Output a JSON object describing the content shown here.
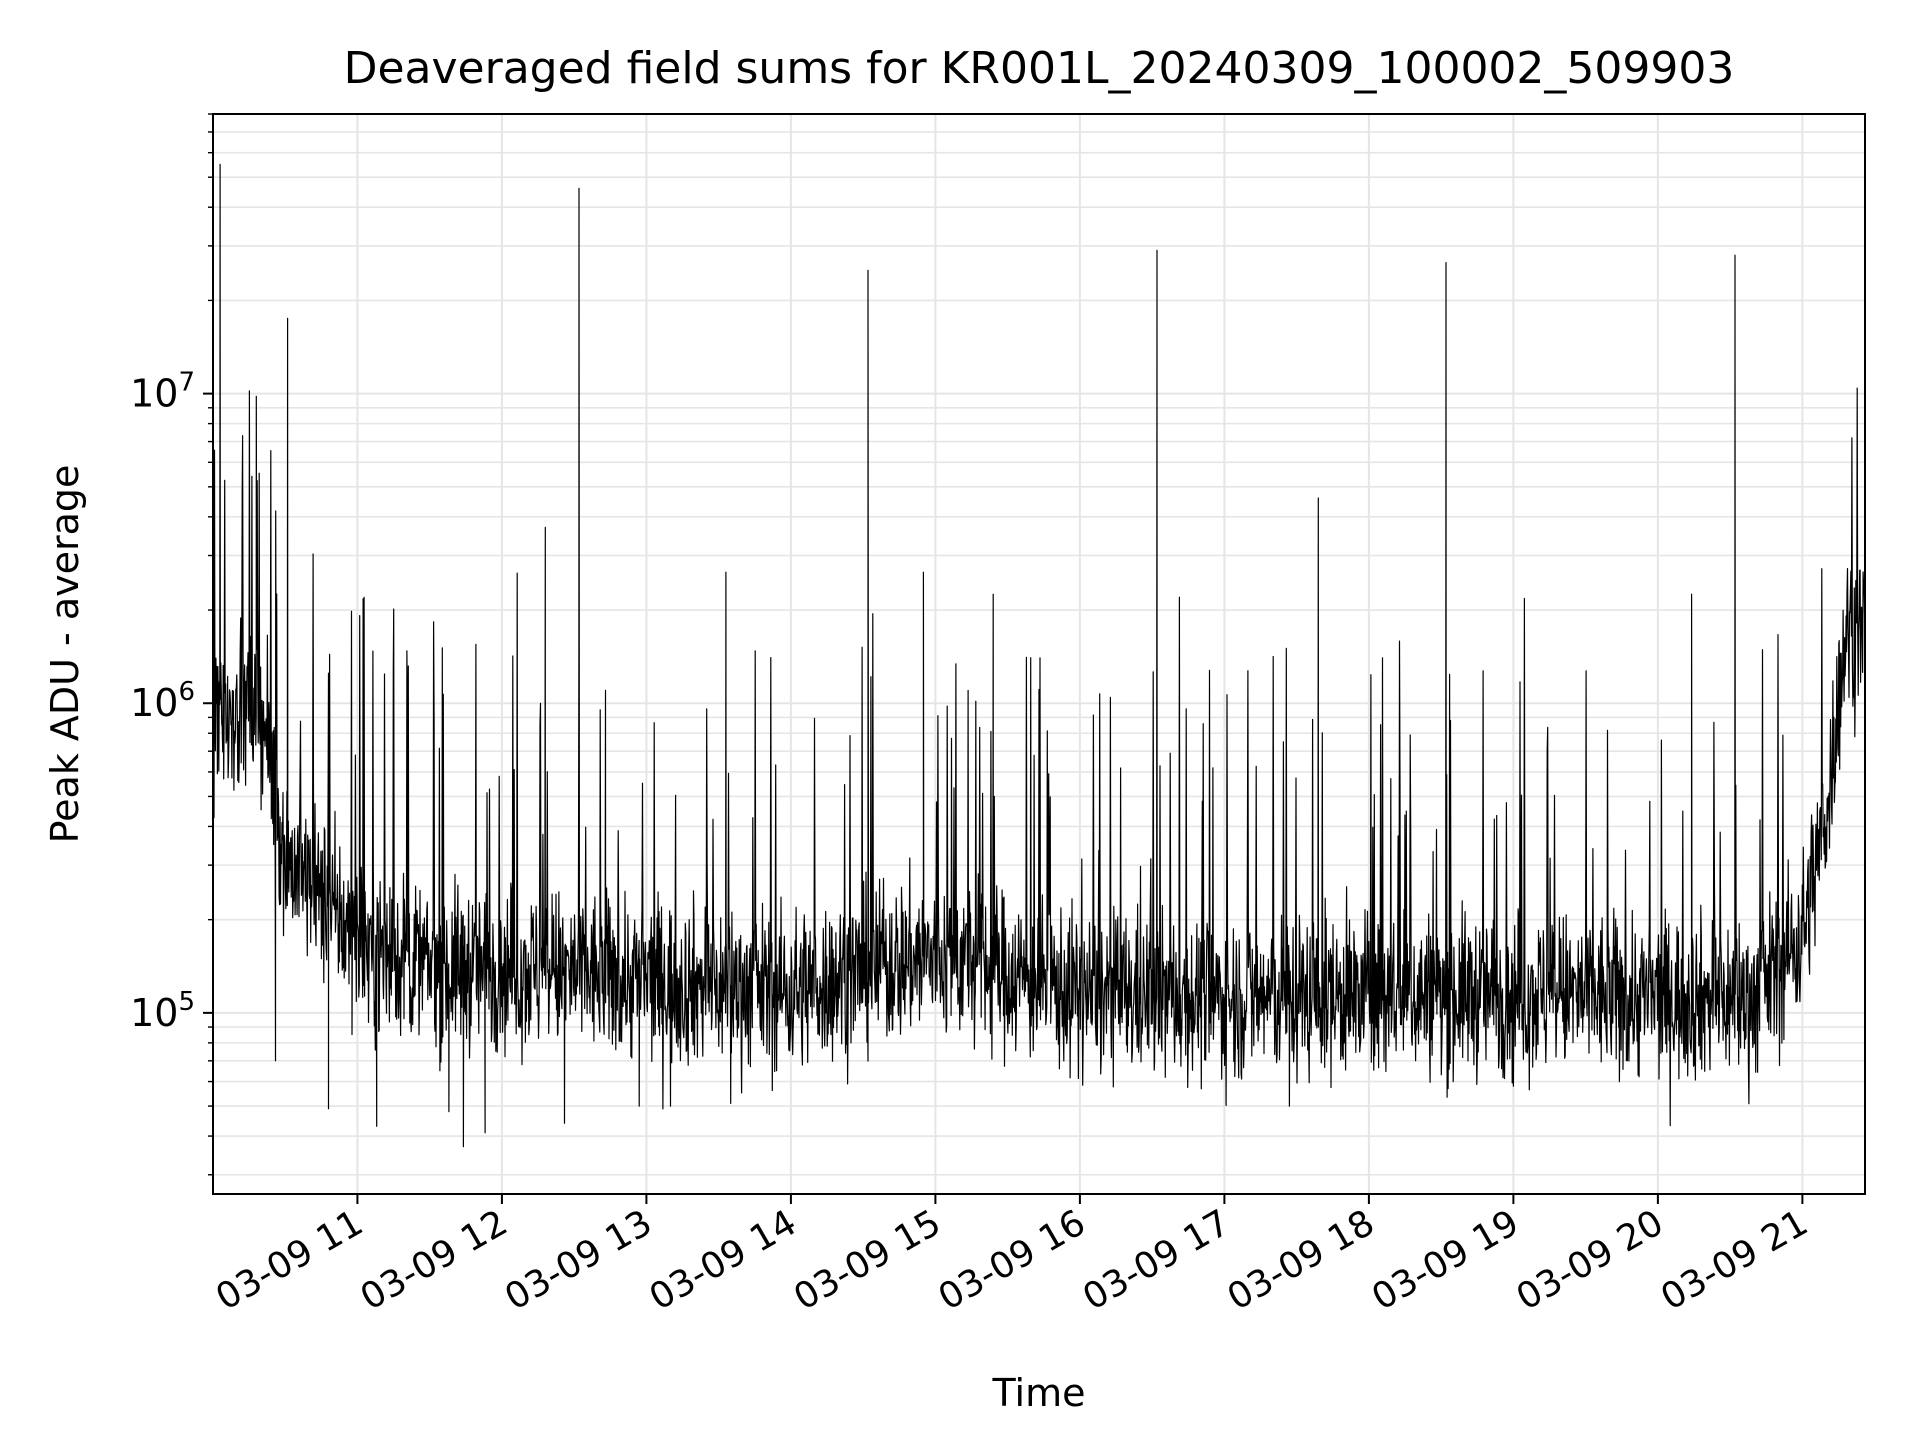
{
  "chart_data": {
    "type": "line",
    "title": "Deaveraged field sums for KR001L_20240309_100002_509903",
    "xlabel": "Time",
    "ylabel": "Peak ADU - average",
    "y_scale": "log",
    "ylim": [
      26000,
      80000000
    ],
    "xlim": [
      "2024-03-09 10:00:02",
      "2024-03-09 21:26:00"
    ],
    "x_ticks": [
      "2024-03-09 11:00",
      "2024-03-09 12:00",
      "2024-03-09 13:00",
      "2024-03-09 14:00",
      "2024-03-09 15:00",
      "2024-03-09 16:00",
      "2024-03-09 17:00",
      "2024-03-09 18:00",
      "2024-03-09 19:00",
      "2024-03-09 20:00",
      "2024-03-09 21:00"
    ],
    "x_tick_labels": [
      "03-09 11",
      "03-09 12",
      "03-09 13",
      "03-09 14",
      "03-09 15",
      "03-09 16",
      "03-09 17",
      "03-09 18",
      "03-09 19",
      "03-09 20",
      "03-09 21"
    ],
    "y_ticks": [
      100000,
      1000000,
      10000000
    ],
    "y_tick_labels": [
      {
        "base": "10",
        "exp": "5"
      },
      {
        "base": "10",
        "exp": "6"
      },
      {
        "base": "10",
        "exp": "7"
      }
    ],
    "grid": true,
    "line_color": "#000000",
    "grid_color": "#e5e5e5",
    "baseline": [
      {
        "t": "2024-03-09 10:00:02",
        "v": 950000
      },
      {
        "t": "2024-03-09 10:20",
        "v": 950000
      },
      {
        "t": "2024-03-09 10:30",
        "v": 320000
      },
      {
        "t": "2024-03-09 11:00",
        "v": 170000
      },
      {
        "t": "2024-03-09 11:30",
        "v": 140000
      },
      {
        "t": "2024-03-09 12:00",
        "v": 140000
      },
      {
        "t": "2024-03-09 13:00",
        "v": 128000
      },
      {
        "t": "2024-03-09 14:00",
        "v": 118000
      },
      {
        "t": "2024-03-09 14:50",
        "v": 150000
      },
      {
        "t": "2024-03-09 15:10",
        "v": 150000
      },
      {
        "t": "2024-03-09 16:00",
        "v": 115000
      },
      {
        "t": "2024-03-09 17:00",
        "v": 112000
      },
      {
        "t": "2024-03-09 18:00",
        "v": 115000
      },
      {
        "t": "2024-03-09 19:00",
        "v": 115000
      },
      {
        "t": "2024-03-09 20:00",
        "v": 112000
      },
      {
        "t": "2024-03-09 20:40",
        "v": 112000
      },
      {
        "t": "2024-03-09 21:00",
        "v": 180000
      },
      {
        "t": "2024-03-09 21:10",
        "v": 450000
      },
      {
        "t": "2024-03-09 21:18",
        "v": 1700000
      },
      {
        "t": "2024-03-09 21:26",
        "v": 1800000
      }
    ],
    "spikes": [
      {
        "t": "2024-03-09 10:03",
        "v": 55000000
      },
      {
        "t": "2024-03-09 10:18",
        "v": 9800000
      },
      {
        "t": "2024-03-09 10:31",
        "v": 17500000
      },
      {
        "t": "2024-03-09 10:48",
        "v": 1250000
      },
      {
        "t": "2024-03-09 12:18",
        "v": 3700000
      },
      {
        "t": "2024-03-09 12:32",
        "v": 46000000
      },
      {
        "t": "2024-03-09 12:43",
        "v": 1100000
      },
      {
        "t": "2024-03-09 13:33",
        "v": 2650000
      },
      {
        "t": "2024-03-09 14:32",
        "v": 25000000
      },
      {
        "t": "2024-03-09 14:55",
        "v": 2650000
      },
      {
        "t": "2024-03-09 15:24",
        "v": 2250000
      },
      {
        "t": "2024-03-09 16:32",
        "v": 29000000
      },
      {
        "t": "2024-03-09 17:39",
        "v": 4600000
      },
      {
        "t": "2024-03-09 18:32",
        "v": 26500000
      },
      {
        "t": "2024-03-09 20:14",
        "v": 2250000
      },
      {
        "t": "2024-03-09 20:32",
        "v": 28000000
      }
    ],
    "dips": [
      {
        "t": "2024-03-09 10:26",
        "v": 70000
      },
      {
        "t": "2024-03-09 10:48",
        "v": 49000
      },
      {
        "t": "2024-03-09 11:08",
        "v": 43000
      },
      {
        "t": "2024-03-09 11:38",
        "v": 48000
      },
      {
        "t": "2024-03-09 11:44",
        "v": 37000
      },
      {
        "t": "2024-03-09 11:53",
        "v": 41000
      },
      {
        "t": "2024-03-09 12:26",
        "v": 44000
      },
      {
        "t": "2024-03-09 12:57",
        "v": 50000
      },
      {
        "t": "2024-03-09 13:10",
        "v": 50000
      },
      {
        "t": "2024-03-09 13:35",
        "v": 51000
      },
      {
        "t": "2024-03-09 17:27",
        "v": 50000
      },
      {
        "t": "2024-03-09 18:35",
        "v": 60000
      },
      {
        "t": "2024-03-09 19:00",
        "v": 58000
      },
      {
        "t": "2024-03-09 19:44",
        "v": 60000
      }
    ]
  }
}
